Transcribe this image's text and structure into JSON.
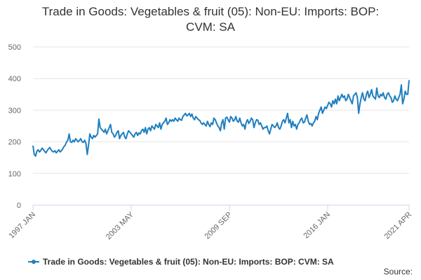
{
  "chart_data": {
    "type": "line",
    "title": "Trade in Goods: Vegetables & fruit (05): Non-EU: Imports: BOP: CVM: SA",
    "source": "Source:",
    "categories": [
      "1997 JAN",
      null,
      null,
      null,
      null,
      null,
      null,
      null,
      null,
      null,
      null,
      null,
      null,
      null,
      null,
      null,
      null,
      null,
      null,
      null,
      null,
      null,
      null,
      null,
      null,
      null,
      null,
      null,
      null,
      null,
      null,
      null,
      null,
      null,
      null,
      null,
      null,
      null,
      null,
      null,
      null,
      null,
      null,
      null,
      null,
      null,
      null,
      null,
      null,
      null,
      null,
      null,
      null,
      null,
      null,
      null,
      null,
      null,
      null,
      null,
      null,
      null,
      null,
      null,
      null,
      null,
      null,
      null,
      null,
      null,
      null,
      null,
      null,
      null,
      null,
      null,
      "2003 MAY",
      null,
      null,
      null,
      null,
      null,
      null,
      null,
      null,
      null,
      null,
      null,
      null,
      null,
      null,
      null,
      null,
      null,
      null,
      null,
      null,
      null,
      null,
      null,
      null,
      null,
      null,
      null,
      null,
      null,
      null,
      null,
      null,
      null,
      null,
      null,
      null,
      null,
      null,
      null,
      null,
      null,
      null,
      null,
      null,
      null,
      null,
      null,
      null,
      null,
      null,
      null,
      null,
      null,
      null,
      null,
      null,
      null,
      null,
      null,
      null,
      null,
      null,
      null,
      null,
      null,
      null,
      null,
      null,
      null,
      null,
      null,
      null,
      null,
      null,
      null,
      "2009 SEP",
      null,
      null,
      null,
      null,
      null,
      null,
      null,
      null,
      null,
      null,
      null,
      null,
      null,
      null,
      null,
      null,
      null,
      null,
      null,
      null,
      null,
      null,
      null,
      null,
      null,
      null,
      null,
      null,
      null,
      null,
      null,
      null,
      null,
      null,
      null,
      null,
      null,
      null,
      null,
      null,
      null,
      null,
      null,
      null,
      null,
      null,
      null,
      null,
      null,
      null,
      null,
      null,
      null,
      null,
      null,
      null,
      null,
      null,
      null,
      null,
      null,
      null,
      null,
      null,
      null,
      null,
      null,
      null,
      null,
      null,
      null,
      null,
      null,
      null,
      null,
      "2016 JAN",
      null,
      null,
      null,
      null,
      null,
      null,
      null,
      null,
      null,
      null,
      null,
      null,
      null,
      null,
      null,
      null,
      null,
      null,
      null,
      null,
      null,
      null,
      null,
      null,
      null,
      null,
      null,
      null,
      null,
      null,
      null,
      null,
      null,
      null,
      null,
      null,
      null,
      null,
      null,
      null,
      null,
      null,
      null,
      null,
      null,
      null,
      null,
      null,
      null,
      null,
      null,
      null,
      null,
      null,
      null,
      null,
      null,
      null,
      null,
      null,
      null,
      null,
      "2021 APR"
    ],
    "series": [
      {
        "name": "Trade in Goods: Vegetables & fruit (05): Non-EU: Imports: BOP: CVM: SA",
        "color": "#1f7fbf",
        "values": [
          188,
          160,
          155,
          170,
          175,
          168,
          172,
          180,
          176,
          170,
          165,
          172,
          178,
          182,
          175,
          170,
          168,
          172,
          165,
          170,
          175,
          168,
          172,
          178,
          185,
          190,
          200,
          205,
          225,
          200,
          198,
          205,
          200,
          210,
          205,
          200,
          205,
          210,
          200,
          198,
          205,
          195,
          160,
          190,
          225,
          215,
          210,
          220,
          215,
          220,
          225,
          272,
          245,
          240,
          235,
          230,
          240,
          225,
          235,
          245,
          255,
          230,
          225,
          215,
          220,
          230,
          235,
          210,
          220,
          225,
          230,
          215,
          210,
          225,
          235,
          230,
          225,
          220,
          215,
          225,
          230,
          220,
          228,
          225,
          235,
          240,
          230,
          245,
          225,
          240,
          245,
          235,
          250,
          245,
          240,
          255,
          250,
          245,
          260,
          240,
          255,
          260,
          265,
          275,
          255,
          260,
          270,
          265,
          270,
          265,
          275,
          270,
          265,
          275,
          270,
          268,
          280,
          285,
          290,
          282,
          285,
          290,
          280,
          288,
          275,
          270,
          280,
          275,
          270,
          268,
          260,
          255,
          260,
          255,
          250,
          265,
          255,
          248,
          260,
          255,
          275,
          270,
          260,
          250,
          245,
          235,
          260,
          270,
          240,
          275,
          278,
          270,
          262,
          280,
          275,
          265,
          270,
          280,
          265,
          262,
          275,
          260,
          250,
          255,
          240,
          262,
          270,
          258,
          265,
          275,
          270,
          245,
          260,
          270,
          268,
          255,
          260,
          250,
          240,
          245,
          245,
          250,
          235,
          225,
          240,
          255,
          250,
          245,
          250,
          260,
          245,
          240,
          250,
          265,
          270,
          260,
          275,
          290,
          260,
          270,
          245,
          265,
          250,
          255,
          240,
          255,
          260,
          270,
          275,
          260,
          262,
          275,
          285,
          265,
          255,
          258,
          250,
          260,
          265,
          280,
          270,
          290,
          300,
          310,
          290,
          300,
          310,
          305,
          315,
          325,
          320,
          310,
          330,
          320,
          335,
          320,
          345,
          330,
          340,
          350,
          340,
          345,
          330,
          335,
          350,
          340,
          330,
          320,
          345,
          350,
          355,
          340,
          290,
          320,
          340,
          355,
          335,
          330,
          350,
          360,
          340,
          350,
          365,
          345,
          340,
          335,
          370,
          345,
          340,
          350,
          345,
          355,
          340,
          335,
          350,
          355,
          345,
          340,
          325,
          330,
          345,
          335,
          330,
          340,
          350,
          380,
          320,
          335,
          360,
          350,
          350,
          395
        ]
      }
    ],
    "ylim": [
      0,
      500
    ],
    "yticks": [
      0,
      100,
      200,
      300,
      400,
      500
    ],
    "grid": true,
    "legend": "bottom"
  }
}
